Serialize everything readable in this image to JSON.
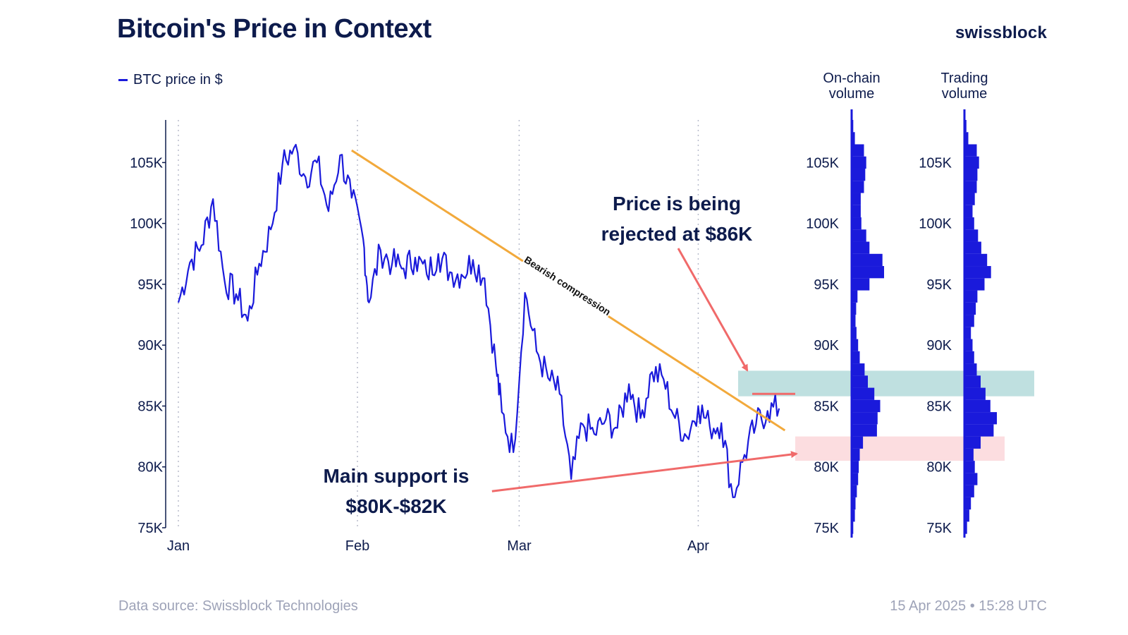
{
  "header": {
    "title": "Bitcoin's Price in Context",
    "brand": "swissblock"
  },
  "legend": {
    "label": "BTC price in $"
  },
  "footer": {
    "source": "Data source: Swissblock Technologies",
    "timestamp": "15 Apr 2025 • 15:28 UTC"
  },
  "annotations": {
    "resistance_line1": "Price is being",
    "resistance_line2": "rejected at $86K",
    "support_line1": "Main support is",
    "support_line2": "$80K-$82K",
    "trendline_label": "Bearish compression"
  },
  "colors": {
    "price_line": "#1a1adb",
    "trendline": "#f2a93b",
    "arrow": "#f06a6a",
    "resistance_zone": "#a9d6d6",
    "support_zone": "#fbd5d8",
    "volume_bars": "#1a1adb"
  },
  "chart_data": [
    {
      "type": "line",
      "series": [
        {
          "name": "BTC price in $",
          "x": [
            "2025-01-01",
            "2025-01-03",
            "2025-01-05",
            "2025-01-07",
            "2025-01-09",
            "2025-01-11",
            "2025-01-13",
            "2025-01-15",
            "2025-01-17",
            "2025-01-19",
            "2025-01-21",
            "2025-01-23",
            "2025-01-25",
            "2025-01-27",
            "2025-01-29",
            "2025-01-31",
            "2025-02-02",
            "2025-02-03",
            "2025-02-05",
            "2025-02-07",
            "2025-02-09",
            "2025-02-11",
            "2025-02-13",
            "2025-02-15",
            "2025-02-17",
            "2025-02-19",
            "2025-02-21",
            "2025-02-23",
            "2025-02-25",
            "2025-02-26",
            "2025-02-28",
            "2025-03-02",
            "2025-03-04",
            "2025-03-06",
            "2025-03-08",
            "2025-03-10",
            "2025-03-12",
            "2025-03-14",
            "2025-03-16",
            "2025-03-18",
            "2025-03-20",
            "2025-03-22",
            "2025-03-24",
            "2025-03-26",
            "2025-03-28",
            "2025-03-30",
            "2025-04-01",
            "2025-04-03",
            "2025-04-05",
            "2025-04-07",
            "2025-04-09",
            "2025-04-11",
            "2025-04-13",
            "2025-04-15"
          ],
          "y": [
            93500,
            96800,
            98200,
            102000,
            95300,
            94200,
            92000,
            96700,
            99500,
            104800,
            106200,
            103800,
            105000,
            101000,
            105600,
            102100,
            98700,
            93500,
            97800,
            96700,
            96300,
            97200,
            95800,
            97500,
            96000,
            95800,
            97000,
            95500,
            88200,
            84500,
            81200,
            94300,
            89500,
            87300,
            86000,
            79000,
            83500,
            82700,
            83900,
            83200,
            86800,
            84000,
            87800,
            87200,
            84000,
            82500,
            85000,
            83300,
            83600,
            77500,
            81000,
            83500,
            84600,
            84800
          ]
        }
      ],
      "xticks": [
        "Jan",
        "Feb",
        "Mar",
        "Apr"
      ],
      "yticks": [
        "75K",
        "80K",
        "85K",
        "90K",
        "95K",
        "100K",
        "105K"
      ],
      "ylim": [
        75000,
        108500
      ],
      "trendline": {
        "x": [
          "2025-01-31",
          "2025-04-16"
        ],
        "y": [
          106000,
          83000
        ]
      },
      "support_arrow": {
        "x": [
          "2025-02-26",
          "2025-04-19"
        ],
        "y": [
          78000,
          81600
        ]
      },
      "resistance_level": 86000,
      "resistance_zone": [
        85800,
        87900
      ],
      "support_zone": [
        80500,
        82500
      ]
    },
    {
      "type": "bar",
      "title_lines": [
        "On-chain",
        "volume"
      ],
      "orientation": "horizontal",
      "yticks": [
        "75K",
        "80K",
        "85K",
        "90K",
        "95K",
        "100K",
        "105K"
      ],
      "price_levels": [
        75000,
        76000,
        77000,
        78000,
        79000,
        80000,
        81000,
        82000,
        83000,
        84000,
        85000,
        86000,
        87000,
        88000,
        89000,
        90000,
        91000,
        92000,
        93000,
        94000,
        95000,
        96000,
        97000,
        98000,
        99000,
        100000,
        101000,
        102000,
        103000,
        104000,
        105000,
        106000,
        107000,
        108000
      ],
      "values": [
        0.05,
        0.1,
        0.12,
        0.16,
        0.2,
        0.22,
        0.25,
        0.35,
        0.78,
        0.8,
        0.88,
        0.7,
        0.5,
        0.4,
        0.25,
        0.2,
        0.15,
        0.12,
        0.14,
        0.18,
        0.55,
        1.0,
        0.95,
        0.55,
        0.45,
        0.3,
        0.28,
        0.28,
        0.38,
        0.42,
        0.45,
        0.38,
        0.1,
        0.05
      ]
    },
    {
      "type": "bar",
      "title_lines": [
        "Trading",
        "volume"
      ],
      "orientation": "horizontal",
      "yticks": [
        "75K",
        "80K",
        "85K",
        "90K",
        "95K",
        "100K",
        "105K"
      ],
      "price_levels": [
        75000,
        76000,
        77000,
        78000,
        79000,
        80000,
        81000,
        82000,
        83000,
        84000,
        85000,
        86000,
        87000,
        88000,
        89000,
        90000,
        91000,
        92000,
        93000,
        94000,
        95000,
        96000,
        97000,
        98000,
        99000,
        100000,
        101000,
        102000,
        103000,
        104000,
        105000,
        106000,
        107000,
        108000
      ],
      "values": [
        0.08,
        0.15,
        0.2,
        0.3,
        0.4,
        0.32,
        0.28,
        0.5,
        0.9,
        1.0,
        0.8,
        0.65,
        0.5,
        0.38,
        0.3,
        0.25,
        0.2,
        0.3,
        0.35,
        0.4,
        0.62,
        0.82,
        0.7,
        0.52,
        0.42,
        0.3,
        0.25,
        0.32,
        0.38,
        0.4,
        0.45,
        0.38,
        0.12,
        0.06
      ]
    }
  ]
}
